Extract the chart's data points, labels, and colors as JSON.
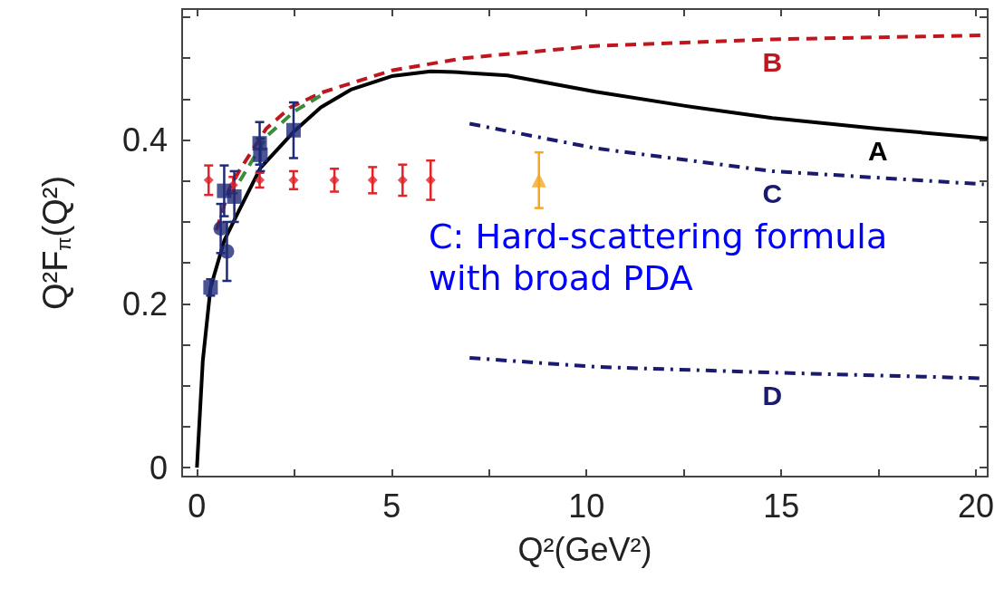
{
  "chart_data": {
    "type": "line",
    "xlabel": "Q²(GeV²)",
    "ylabel": "Q²F$_{π}$(Q²)",
    "xlim": [
      -0.38,
      20.3
    ],
    "xticks": [
      0,
      {
        "value": 2.5,
        "label": null
      },
      5,
      {
        "value": 7.5,
        "label": null
      },
      10,
      {
        "value": 12.5,
        "label": null
      },
      15,
      {
        "value": 17.5,
        "label": null
      },
      20
    ],
    "ylim": [
      -0.011,
      0.56
    ],
    "yticks": [
      0,
      {
        "value": 0.05,
        "label": null
      },
      {
        "value": 0.1,
        "label": null
      },
      {
        "value": 0.15,
        "label": null
      },
      {
        "value": 0.2,
        "label": "0.2"
      },
      {
        "value": 0.25,
        "label": null
      },
      {
        "value": 0.3,
        "label": null
      },
      {
        "value": 0.35,
        "label": null
      },
      {
        "value": 0.4,
        "label": "0.4"
      },
      {
        "value": 0.45,
        "label": null
      },
      {
        "value": 0.5,
        "label": null
      },
      {
        "value": 0.55,
        "label": null
      }
    ],
    "grid": false,
    "legend": false,
    "series": [
      {
        "name": "A",
        "color": "#000000",
        "line_style": "solid",
        "marker": "none",
        "x": [
          0,
          0.15,
          0.35,
          0.7,
          1.08,
          1.63,
          2.48,
          3.18,
          3.97,
          5,
          6,
          6.61,
          7.97,
          10.23,
          12.5,
          14.77,
          17.48,
          20.3
        ],
        "values": [
          0,
          0.13,
          0.22,
          0.277,
          0.314,
          0.366,
          0.41,
          0.44,
          0.462,
          0.478,
          0.484,
          0.483,
          0.479,
          0.459,
          0.442,
          0.427,
          0.414,
          0.402
        ]
      },
      {
        "name": "B",
        "color": "#c0161d",
        "line_style": "dashed",
        "marker": "none",
        "x": [
          0.5,
          0.83,
          1.08,
          1.78,
          2.4,
          3.2,
          4,
          5,
          6.85,
          10.23,
          14.77,
          20.3
        ],
        "values": [
          0.29,
          0.34,
          0.362,
          0.414,
          0.44,
          0.458,
          0.47,
          0.485,
          0.5,
          0.515,
          0.523,
          0.528
        ]
      },
      {
        "name": "C",
        "color": "#1a1a6e",
        "line_style": "dashdot",
        "marker": "none",
        "x": [
          7.0,
          10.23,
          14.77,
          20.2
        ],
        "values": [
          0.42,
          0.39,
          0.362,
          0.346
        ]
      },
      {
        "name": "D",
        "color": "#1a1a6e",
        "line_style": "dashdot",
        "marker": "none",
        "x": [
          7.0,
          10.23,
          14.77,
          20.2
        ],
        "values": [
          0.134,
          0.123,
          0.116,
          0.109
        ]
      },
      {
        "color": "#3c8c3c",
        "line_style": "dashed",
        "marker": "none",
        "x": [
          1.1,
          1.8,
          2.5,
          3.2
        ],
        "values": [
          0.35,
          0.405,
          0.435,
          0.455
        ]
      },
      {
        "type": "scatter",
        "color": "#e0242a",
        "marker": "diamond",
        "x": [
          0.3,
          0.93,
          1.61,
          2.48,
          3.53,
          4.51,
          5.28,
          6.0
        ],
        "values": [
          0.351,
          0.345,
          0.351,
          0.351,
          0.351,
          0.351,
          0.351,
          0.351
        ],
        "errors": [
          0.018,
          0.01,
          0.009,
          0.011,
          0.014,
          0.016,
          0.019,
          0.024
        ]
      },
      {
        "type": "scatter",
        "color": "#f5a623",
        "marker": "triangle",
        "x": [
          8.78
        ],
        "values": [
          0.351
        ],
        "errors": [
          0.034
        ]
      },
      {
        "type": "scatter",
        "color": "#1f2a78",
        "marker": "square",
        "x": [
          0.35,
          0.7,
          0.96,
          1.61,
          1.63,
          2.48
        ],
        "values": [
          0.22,
          0.338,
          0.331,
          0.396,
          0.382,
          0.412
        ],
        "errors": [
          0.01,
          0.031,
          0.031,
          0.026,
          0.02,
          0.034
        ]
      },
      {
        "type": "scatter",
        "color": "#1f2a78",
        "marker": "circle",
        "x": [
          0.61,
          0.77
        ],
        "values": [
          0.292,
          0.264
        ],
        "errors": [
          0.03,
          0.036
        ]
      }
    ],
    "annotations": [
      "C: Hard-scattering formula\nwith broad PDA"
    ]
  }
}
